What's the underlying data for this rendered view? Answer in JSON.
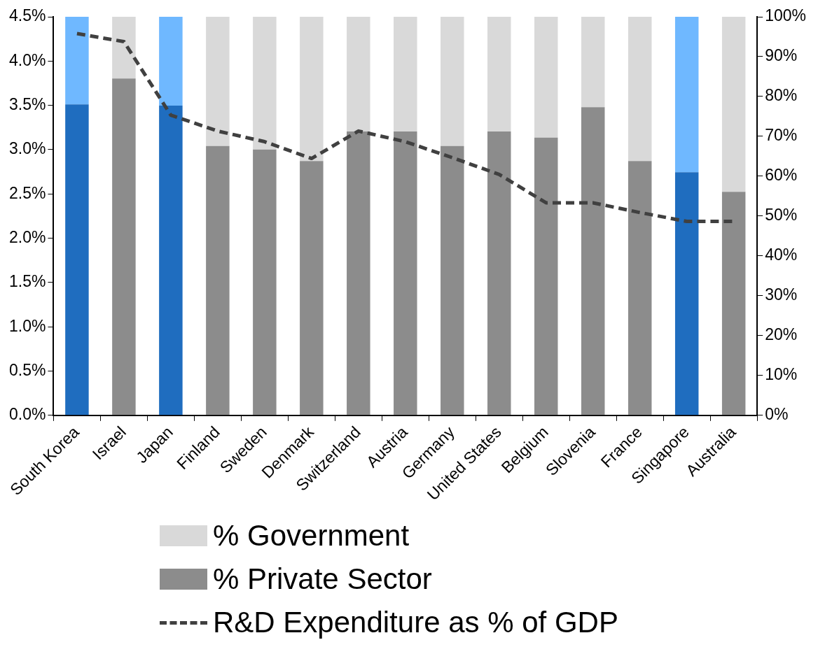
{
  "chart_data": {
    "type": "bar",
    "stacked": true,
    "legend": "bottom",
    "grid": false,
    "line_style": "dashed",
    "marker": "none",
    "categories": [
      "South Korea",
      "Israel",
      "Japan",
      "Finland",
      "Sweden",
      "Denmark",
      "Switzerland",
      "Austria",
      "Germany",
      "United States",
      "Belgium",
      "Slovenia",
      "France",
      "Singapore",
      "Australia"
    ],
    "ylim": [
      0,
      4.5
    ],
    "yticks": [
      {
        "value": 0,
        "label": "0.0%"
      },
      {
        "value": 0.5,
        "label": "0.5%"
      },
      {
        "value": 1,
        "label": "1.0%"
      },
      {
        "value": 1.5,
        "label": "1.5%"
      },
      {
        "value": 2,
        "label": "2.0%"
      },
      {
        "value": 2.5,
        "label": "2.5%"
      },
      {
        "value": 3,
        "label": "3.0%"
      },
      {
        "value": 3.5,
        "label": "3.5%"
      },
      {
        "value": 4,
        "label": "4.0%"
      },
      {
        "value": 4.5,
        "label": "4.5%"
      }
    ],
    "y2lim": [
      0,
      100
    ],
    "y2ticks": [
      {
        "value": 0,
        "label": "0%"
      },
      {
        "value": 10,
        "label": "10%"
      },
      {
        "value": 20,
        "label": "20%"
      },
      {
        "value": 30,
        "label": "30%"
      },
      {
        "value": 40,
        "label": "40%"
      },
      {
        "value": 50,
        "label": "50%"
      },
      {
        "value": 60,
        "label": "60%"
      },
      {
        "value": 70,
        "label": "70%"
      },
      {
        "value": 80,
        "label": "80%"
      },
      {
        "value": 90,
        "label": "90%"
      },
      {
        "value": 100,
        "label": "100%"
      }
    ],
    "series": [
      {
        "name": "% Private Sector",
        "axis": "y2",
        "color": "#8c8c8c",
        "colors": [
          "#1f6dbf",
          "#8c8c8c",
          "#1f6dbf",
          "#8c8c8c",
          "#8c8c8c",
          "#8c8c8c",
          "#8c8c8c",
          "#8c8c8c",
          "#8c8c8c",
          "#8c8c8c",
          "#8c8c8c",
          "#8c8c8c",
          "#8c8c8c",
          "#1f6dbf",
          "#8c8c8c"
        ],
        "values": [
          78,
          84.5,
          77.7,
          67.6,
          66.7,
          63.8,
          71.2,
          71.2,
          67.6,
          71.2,
          69.7,
          77.3,
          63.8,
          61,
          56.1
        ]
      },
      {
        "name": "% Government",
        "axis": "y2",
        "color": "#d9d9d9",
        "colors": [
          "#6fb8ff",
          "#d9d9d9",
          "#6fb8ff",
          "#d9d9d9",
          "#d9d9d9",
          "#d9d9d9",
          "#d9d9d9",
          "#d9d9d9",
          "#d9d9d9",
          "#d9d9d9",
          "#d9d9d9",
          "#d9d9d9",
          "#d9d9d9",
          "#6fb8ff",
          "#d9d9d9"
        ],
        "values": [
          22,
          15.5,
          22.3,
          32.4,
          33.3,
          36.2,
          28.8,
          28.8,
          32.4,
          28.8,
          30.3,
          22.7,
          36.2,
          39,
          43.9
        ]
      },
      {
        "name": "R&D Expenditure as % of GDP",
        "type": "line",
        "axis": "y",
        "color": "#404040",
        "values": [
          4.31,
          4.22,
          3.39,
          3.21,
          3.09,
          2.9,
          3.21,
          3.09,
          2.91,
          2.72,
          2.4,
          2.4,
          2.29,
          2.19,
          2.19
        ]
      }
    ]
  }
}
